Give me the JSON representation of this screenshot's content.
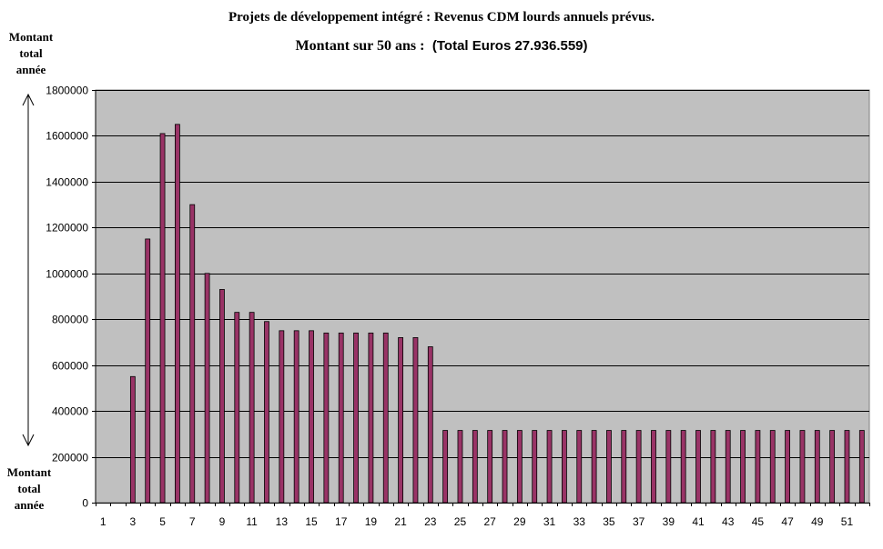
{
  "chart_data": {
    "type": "bar",
    "title": "Projets de développement intégré : Revenus CDM lourds annuels prévus.",
    "subtitle_serif": "Montant sur 50 ans :",
    "subtitle_sans": "(Total Euros 27.936.559)",
    "ylabel_top": [
      "Montant",
      "total",
      "année"
    ],
    "ylabel_bottom": [
      "Montant",
      "total",
      "année"
    ],
    "ylim": [
      0,
      1800000
    ],
    "yticks": [
      "0",
      "200000",
      "400000",
      "600000",
      "800000",
      "1000000",
      "1200000",
      "1400000",
      "1600000",
      "1800000"
    ],
    "xtick_labels": [
      "1",
      "3",
      "5",
      "7",
      "9",
      "11",
      "13",
      "15",
      "17",
      "19",
      "21",
      "23",
      "25",
      "27",
      "29",
      "31",
      "33",
      "35",
      "37",
      "39",
      "41",
      "43",
      "45",
      "47",
      "49",
      "51"
    ],
    "categories": [
      1,
      2,
      3,
      4,
      5,
      6,
      7,
      8,
      9,
      10,
      11,
      12,
      13,
      14,
      15,
      16,
      17,
      18,
      19,
      20,
      21,
      22,
      23,
      24,
      25,
      26,
      27,
      28,
      29,
      30,
      31,
      32,
      33,
      34,
      35,
      36,
      37,
      38,
      39,
      40,
      41,
      42,
      43,
      44,
      45,
      46,
      47,
      48,
      49,
      50,
      51,
      52
    ],
    "values": [
      0,
      0,
      550000,
      1150000,
      1610000,
      1650000,
      1300000,
      1000000,
      930000,
      830000,
      830000,
      790000,
      750000,
      750000,
      750000,
      740000,
      740000,
      740000,
      740000,
      740000,
      720000,
      720000,
      680000,
      315000,
      315000,
      315000,
      315000,
      315000,
      315000,
      315000,
      315000,
      315000,
      315000,
      315000,
      315000,
      315000,
      315000,
      315000,
      315000,
      315000,
      315000,
      315000,
      315000,
      315000,
      315000,
      315000,
      315000,
      315000,
      315000,
      315000,
      315000,
      315000
    ],
    "grid": true,
    "legend": "none",
    "colors": {
      "plot_background": "#c0c0c0",
      "bar_fill": "#993366",
      "bar_stroke": "#000000",
      "gridline": "#000000"
    }
  }
}
